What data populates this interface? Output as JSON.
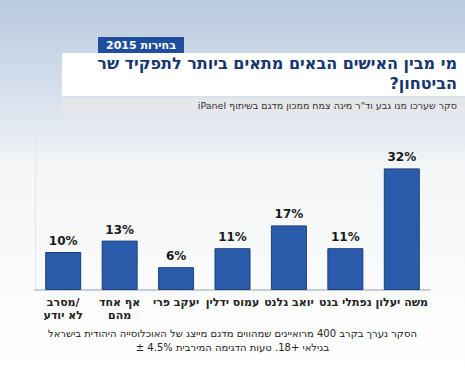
{
  "chart_data": {
    "type": "bar",
    "tag": "בחירות 2015",
    "title": "מי מבין האישים הבאים מתאים ביותר לתפקיד שר הביטחון?",
    "subtitle": "סקר שערכו מנו גבע וד\"ר מינה צמח ממכון מדגם בשיתוף iPanel",
    "note": "הסקר נערך בקרב 400 מרואיינים שמהווים מדגם מייצג של האוכלוסייה היהודית בישראל\nבגילאי +18. טעות הדגימה המירבית 4.5% ±",
    "categories": [
      "מסרב/\nלא יודע",
      "אף אחד\nמהם",
      "יעקב פרי",
      "עמוס ידלין",
      "יואב גלנט",
      "נפתלי בנט",
      "משה יעלון"
    ],
    "values": [
      10,
      13,
      6,
      11,
      17,
      11,
      32
    ],
    "value_labels": [
      "10%",
      "13%",
      "6%",
      "11%",
      "17%",
      "11%",
      "32%"
    ],
    "color": "#2b5cab",
    "ylim": [
      0,
      40
    ],
    "grid": false,
    "data_labels": true,
    "tick_labels": "x"
  }
}
